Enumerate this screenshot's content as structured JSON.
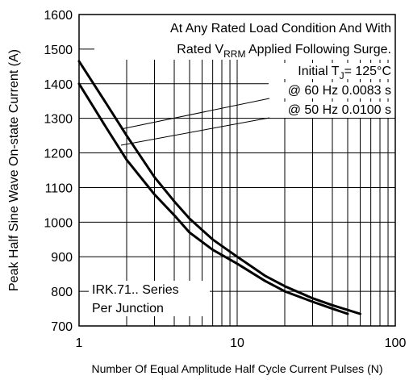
{
  "chart_data": {
    "type": "line",
    "x_scale": "log",
    "xlim": [
      1,
      100
    ],
    "ylim": [
      700,
      1600
    ],
    "grid": true,
    "xlabel": "Number Of Equal Amplitude Half Cycle Current Pulses (N)",
    "ylabel": "Peak Half Sine Wave On-state Current (A)",
    "x_ticks": [
      "1",
      "10",
      "100"
    ],
    "y_ticks": [
      "700",
      "800",
      "900",
      "1000",
      "1100",
      "1200",
      "1300",
      "1400",
      "1500",
      "1600"
    ],
    "annotations": {
      "line1": "At Any Rated Load Condition And With",
      "line2_pre": "Rated V",
      "line2_sub": "RRM",
      "line2_post": " Applied Following Surge.",
      "line3_pre": "Initial T",
      "line3_sub": "J",
      "line3_post": "= 125°C",
      "line4": "@ 60 Hz 0.0083 s",
      "line5": "@ 50 Hz 0.0100 s",
      "series_label_1": "IRK.71.. Series",
      "series_label_2": "Per Junction"
    },
    "series": [
      {
        "name": "@ 60 Hz 0.0083 s",
        "x": [
          1,
          1.5,
          2,
          3,
          4,
          5,
          7,
          10,
          15,
          20,
          30,
          40,
          60
        ],
        "y": [
          1465,
          1340,
          1250,
          1130,
          1060,
          1010,
          950,
          900,
          845,
          815,
          780,
          760,
          735
        ]
      },
      {
        "name": "@ 50 Hz 0.0100 s",
        "x": [
          1,
          1.5,
          2,
          3,
          4,
          5,
          7,
          10,
          15,
          20,
          30,
          40,
          50
        ],
        "y": [
          1400,
          1270,
          1180,
          1080,
          1020,
          970,
          920,
          880,
          830,
          800,
          770,
          750,
          735
        ]
      }
    ]
  }
}
